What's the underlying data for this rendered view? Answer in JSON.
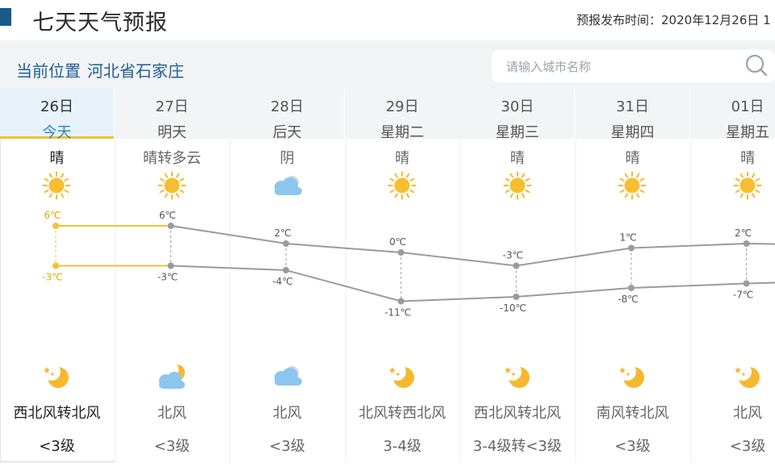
{
  "header": {
    "title": "七天天气预报",
    "publish_label": "预报发布时间：",
    "publish_time": "2020年12月26日 1"
  },
  "location": {
    "label": "当前位置",
    "place": "河北省石家庄"
  },
  "search": {
    "placeholder": "请输入城市名称",
    "value": ""
  },
  "days": [
    {
      "date": "26日",
      "label": "今天",
      "condition": "晴",
      "day_icon": "sun-icon",
      "high": 6,
      "low": -3,
      "high_text": "6℃",
      "low_text": "-3℃",
      "night_icon": "moon-star-icon",
      "wind_dir": "西北风转北风",
      "wind_level": "<3级"
    },
    {
      "date": "27日",
      "label": "明天",
      "condition": "晴转多云",
      "day_icon": "sun-icon",
      "high": 6,
      "low": -3,
      "high_text": "6℃",
      "low_text": "-3℃",
      "night_icon": "cloud-moon-icon",
      "wind_dir": "北风",
      "wind_level": "<3级"
    },
    {
      "date": "28日",
      "label": "后天",
      "condition": "阴",
      "day_icon": "cloud-icon",
      "high": 2,
      "low": -4,
      "high_text": "2℃",
      "low_text": "-4℃",
      "night_icon": "cloud-icon",
      "wind_dir": "北风",
      "wind_level": "<3级"
    },
    {
      "date": "29日",
      "label": "星期二",
      "condition": "晴",
      "day_icon": "sun-icon",
      "high": 0,
      "low": -11,
      "high_text": "0℃",
      "low_text": "-11℃",
      "night_icon": "moon-star-icon",
      "wind_dir": "北风转西北风",
      "wind_level": "3-4级"
    },
    {
      "date": "30日",
      "label": "星期三",
      "condition": "晴",
      "day_icon": "sun-icon",
      "high": -3,
      "low": -10,
      "high_text": "-3℃",
      "low_text": "-10℃",
      "night_icon": "moon-star-icon",
      "wind_dir": "西北风转北风",
      "wind_level": "3-4级转<3级"
    },
    {
      "date": "31日",
      "label": "星期四",
      "condition": "晴",
      "day_icon": "sun-icon",
      "high": 1,
      "low": -8,
      "high_text": "1℃",
      "low_text": "-8℃",
      "night_icon": "moon-star-icon",
      "wind_dir": "南风转北风",
      "wind_level": "<3级"
    },
    {
      "date": "01日",
      "label": "星期五",
      "condition": "晴",
      "day_icon": "sun-icon",
      "high": 2,
      "low": -7,
      "high_text": "2℃",
      "low_text": "-7℃",
      "night_icon": "moon-star-icon",
      "wind_dir": "北风",
      "wind_level": "<3级"
    }
  ],
  "colors": {
    "accent": "#1f5f95",
    "today_line": "#f2c233",
    "line": "#9b9b9b",
    "sun": "#f5b82e",
    "cloud": "#7fbde8"
  }
}
